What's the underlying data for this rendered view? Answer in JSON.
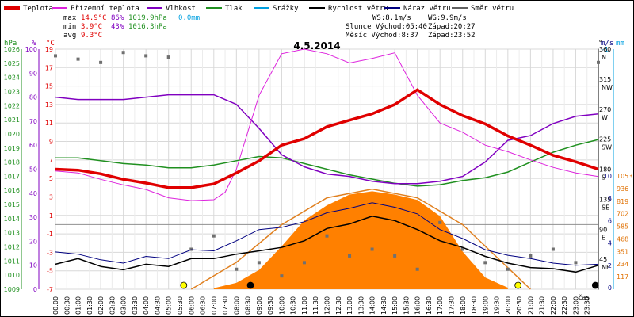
{
  "chart_data": {
    "type": "line",
    "title": "4.5.2014",
    "legend": [
      {
        "name": "Teplota",
        "color": "#e00000"
      },
      {
        "name": "Přízemní teplota",
        "color": "#dd22dd"
      },
      {
        "name": "Vlhkost",
        "color": "#8000c0"
      },
      {
        "name": "Tlak",
        "color": "#209020"
      },
      {
        "name": "Srážky",
        "color": "#00a0e0"
      },
      {
        "name": "Rychlost větru",
        "color": "#000000"
      },
      {
        "name": "Náraz větru",
        "color": "#000080"
      },
      {
        "name": "Směr větru",
        "color": "#606060"
      }
    ],
    "stats": {
      "max": {
        "label": "max",
        "temp": "14.9°C",
        "hum": "86%",
        "press": "1019.9hPa",
        "rain": "0.0mm"
      },
      "min": {
        "label": "min",
        "temp": "3.9°C",
        "hum": "43%",
        "press": "1016.3hPa"
      },
      "avg": {
        "label": "avg",
        "temp": "9.3°C"
      }
    },
    "info": {
      "ws": "WS:8.1m/s",
      "wg": "WG:9.9m/s",
      "sun": "Slunce Východ:05:40",
      "sun_set": "Západ:20:27",
      "moon": "Měsíc Východ:8:37",
      "moon_set": "Západ:23:52"
    },
    "axes": {
      "hpa_label": "hPa",
      "pct_label": "%",
      "c_label": "°C",
      "deg_label": "°",
      "ms_label": "m/s",
      "mm_label": "mm",
      "time_label": "čas",
      "hpa": [
        "1026",
        "1025",
        "1024",
        "1023",
        "1022",
        "1021",
        "1020",
        "1019",
        "1018",
        "1017",
        "1016",
        "1015",
        "1014",
        "1013",
        "1012",
        "1011",
        "1010",
        "1009"
      ],
      "pct": [
        "100",
        "90",
        "80",
        "70",
        "60",
        "50",
        "40",
        "30",
        "20",
        "10",
        "0"
      ],
      "temp": [
        "19",
        "17",
        "15",
        "13",
        "11",
        "9",
        "7",
        "5",
        "3",
        "1",
        "-1",
        "-3",
        "-5",
        "-7"
      ],
      "dir_vals": [
        "360",
        "315",
        "270",
        "225",
        "180",
        "135",
        "90",
        "45"
      ],
      "dir_names": [
        "N",
        "NW",
        "W",
        "SW",
        "S",
        "SE",
        "E",
        "NE"
      ],
      "ms": [
        "10",
        "8",
        "6",
        "4",
        "2",
        "0"
      ],
      "mm_top": "-1",
      "wm2": [
        "1053",
        "936",
        "819",
        "702",
        "585",
        "468",
        "351",
        "234",
        "117"
      ],
      "times": [
        "00:00",
        "00:30",
        "01:00",
        "01:30",
        "02:00",
        "02:30",
        "03:00",
        "03:30",
        "04:00",
        "04:30",
        "05:00",
        "05:30",
        "06:00",
        "06:30",
        "07:00",
        "07:30",
        "08:00",
        "08:30",
        "09:00",
        "09:30",
        "10:00",
        "10:30",
        "11:00",
        "11:30",
        "12:00",
        "12:30",
        "13:00",
        "13:30",
        "14:00",
        "14:30",
        "15:00",
        "15:30",
        "16:00",
        "16:30",
        "17:00",
        "17:30",
        "18:00",
        "18:30",
        "19:00",
        "19:30",
        "20:00",
        "20:30",
        "21:00",
        "21:30",
        "22:00",
        "22:30",
        "23:00",
        "23:30"
      ]
    },
    "x_range_hours": [
      0,
      24
    ],
    "temperature": {
      "x": [
        0,
        1,
        2,
        3,
        4,
        5,
        6,
        7,
        8,
        9,
        10,
        11,
        12,
        13,
        14,
        15,
        16,
        17,
        18,
        19,
        20,
        21,
        22,
        23,
        24
      ],
      "y": [
        6.0,
        5.9,
        5.5,
        4.9,
        4.5,
        4.0,
        4.0,
        4.4,
        5.6,
        6.9,
        8.6,
        9.3,
        10.6,
        11.3,
        12.0,
        13.0,
        14.6,
        13.0,
        11.8,
        10.9,
        9.6,
        8.6,
        7.5,
        6.8,
        6.0
      ]
    },
    "ground_temperature": {
      "x": [
        0,
        1,
        2,
        3,
        4,
        5,
        6,
        7,
        7.5,
        8,
        8.5,
        9,
        10,
        11,
        12,
        13,
        14,
        15,
        16,
        17,
        18,
        19,
        20,
        21,
        22,
        23,
        24
      ],
      "y": [
        5.8,
        5.6,
        4.9,
        4.3,
        3.8,
        2.9,
        2.6,
        2.7,
        3.5,
        6.0,
        10.0,
        14.0,
        18.5,
        19.0,
        18.5,
        17.5,
        18.0,
        18.6,
        14.0,
        11.0,
        10.0,
        8.6,
        7.9,
        7.0,
        6.2,
        5.6,
        5.2
      ]
    },
    "humidity": {
      "x": [
        0,
        1,
        2,
        3,
        4,
        5,
        6,
        7,
        8,
        9,
        10,
        11,
        12,
        13,
        14,
        15,
        16,
        17,
        18,
        19,
        20,
        21,
        22,
        23,
        24
      ],
      "y": [
        80,
        79,
        79,
        79,
        80,
        81,
        81,
        81,
        77,
        67,
        56,
        51,
        48,
        47,
        45,
        44,
        44,
        45,
        47,
        53,
        62,
        64,
        69,
        72,
        73
      ]
    },
    "pressure": {
      "x": [
        0,
        1,
        2,
        3,
        4,
        5,
        6,
        7,
        8,
        9,
        10,
        11,
        12,
        13,
        14,
        15,
        16,
        17,
        18,
        19,
        20,
        21,
        22,
        23,
        24
      ],
      "y": [
        1018.3,
        1018.3,
        1018.1,
        1017.9,
        1017.8,
        1017.6,
        1017.6,
        1017.8,
        1018.1,
        1018.4,
        1018.3,
        1017.9,
        1017.5,
        1017.1,
        1016.8,
        1016.5,
        1016.3,
        1016.4,
        1016.7,
        1016.9,
        1017.3,
        1018.0,
        1018.7,
        1019.2,
        1019.6
      ]
    },
    "wind_speed": {
      "x": [
        0,
        1,
        2,
        3,
        4,
        5,
        6,
        7,
        8,
        9,
        10,
        11,
        12,
        13,
        14,
        15,
        16,
        17,
        18,
        19,
        20,
        21,
        22,
        23,
        24
      ],
      "y": [
        2.1,
        2.6,
        1.9,
        1.6,
        2.1,
        1.9,
        2.6,
        2.6,
        3.0,
        3.3,
        3.6,
        4.2,
        5.3,
        5.7,
        6.4,
        6.0,
        5.2,
        4.2,
        3.6,
        2.8,
        2.2,
        1.8,
        1.7,
        1.4,
        2.0
      ]
    },
    "wind_gust": {
      "x": [
        0,
        1,
        2,
        3,
        4,
        5,
        6,
        7,
        8,
        9,
        10,
        11,
        12,
        13,
        14,
        15,
        16,
        17,
        18,
        19,
        20,
        21,
        22,
        23,
        24
      ],
      "y": [
        3.2,
        3.0,
        2.5,
        2.2,
        2.8,
        2.6,
        3.4,
        3.3,
        4.2,
        5.2,
        5.4,
        5.9,
        6.7,
        7.1,
        7.6,
        7.2,
        6.6,
        5.2,
        4.4,
        3.4,
        2.9,
        2.6,
        2.2,
        2.0,
        2.1
      ]
    },
    "wind_direction": {
      "x": [
        0,
        1,
        2,
        3,
        4,
        5,
        6,
        7,
        8,
        9,
        10,
        11,
        12,
        13,
        14,
        15,
        16,
        17,
        18,
        19,
        20,
        21,
        22,
        23,
        24
      ],
      "y": [
        350,
        345,
        340,
        355,
        350,
        348,
        60,
        80,
        30,
        40,
        20,
        40,
        80,
        50,
        60,
        50,
        30,
        100,
        60,
        40,
        30,
        50,
        60,
        40,
        340
      ]
    },
    "solar_radiation": {
      "x": [
        7,
        8,
        9,
        10,
        11,
        12,
        13,
        14,
        15,
        16,
        17,
        18,
        19,
        20
      ],
      "y": [
        10,
        60,
        180,
        400,
        640,
        780,
        880,
        910,
        880,
        830,
        680,
        350,
        110,
        15
      ]
    },
    "theoretical_radiation": {
      "x": [
        6,
        8,
        10,
        12,
        14,
        16,
        18,
        20,
        21
      ],
      "y": [
        0,
        250,
        600,
        850,
        930,
        850,
        600,
        200,
        0
      ]
    },
    "rain_mm": 0.0,
    "markers": [
      {
        "name": "sunrise",
        "hour": 5.67,
        "color": "#ffff00"
      },
      {
        "name": "moonrise",
        "hour": 8.62,
        "color": "#000000"
      },
      {
        "name": "sunset",
        "hour": 20.45,
        "color": "#ffff00"
      },
      {
        "name": "moonset",
        "hour": 23.87,
        "color": "#000000"
      }
    ]
  }
}
